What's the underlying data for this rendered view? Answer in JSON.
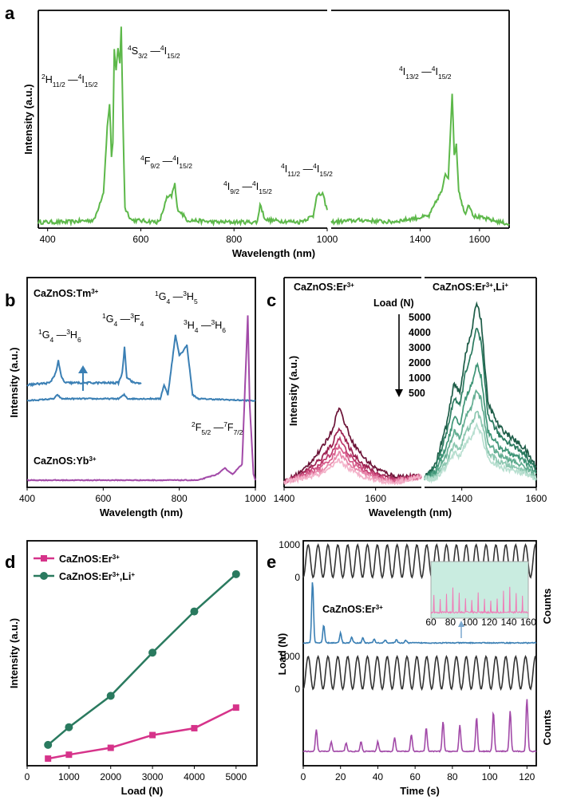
{
  "colors": {
    "green": "#5db84a",
    "blue": "#3a7fb4",
    "purple": "#a24aa8",
    "magenta": "#d6338a",
    "teal": "#2a7a5f",
    "wine": "#7a1840",
    "axis": "#000000",
    "inset_bg": "#c9ece0",
    "inset_line": "#f07ab6"
  },
  "panels": {
    "a": {
      "label": "a",
      "xlabel": "Wavelength (nm)",
      "ylabel": "Intensity (a.u.)",
      "peaks": [
        {
          "base": "H",
          "pre": "2",
          "sub": "11/2",
          "end": "4",
          "to": "I",
          "tosub": "15/2"
        },
        {
          "base": "S",
          "pre": "4",
          "sub": "3/2",
          "end": "4",
          "to": "I",
          "tosub": "15/2"
        },
        {
          "base": "F",
          "pre": "4",
          "sub": "9/2",
          "end": "4",
          "to": "I",
          "tosub": "15/2"
        },
        {
          "base": "I",
          "pre": "4",
          "sub": "9/2",
          "end": "4",
          "to": "I",
          "tosub": "15/2"
        },
        {
          "base": "I",
          "pre": "4",
          "sub": "11/2",
          "end": "4",
          "to": "I",
          "tosub": "15/2"
        },
        {
          "base": "I",
          "pre": "4",
          "sub": "13/2",
          "end": "4",
          "to": "I",
          "tosub": "15/2"
        }
      ]
    },
    "b": {
      "label": "b",
      "xlabel": "Wavelength (nm)",
      "ylabel": "Intensity (a.u.)",
      "tm_label": "CaZnOS:Tm",
      "tm_sup": "3+",
      "yb_label": "CaZnOS:Yb",
      "yb_sup": "3+",
      "peaks": [
        {
          "a": "1",
          "b": "G",
          "bs": "4",
          "c": "3",
          "d": "H",
          "ds": "6"
        },
        {
          "a": "1",
          "b": "G",
          "bs": "4",
          "c": "3",
          "d": "F",
          "ds": "4"
        },
        {
          "a": "1",
          "b": "G",
          "bs": "4",
          "c": "3",
          "d": "H",
          "ds": "5"
        },
        {
          "a": "3",
          "b": "H",
          "bs": "4",
          "c": "3",
          "d": "H",
          "ds": "6"
        },
        {
          "a": "2",
          "b": "F",
          "bs": "5/2",
          "c": "7",
          "d": "F",
          "ds": "7/2"
        }
      ]
    },
    "c": {
      "label": "c",
      "xlabel": "Wavelength (nm)",
      "ylabel": "Intensity (a.u.)",
      "left_title": "CaZnOS:Er",
      "left_sup": "3+",
      "right_title": "CaZnOS:Er",
      "right_sup": "3+",
      "right_extra": ",Li",
      "right_extra_sup": "+",
      "load_title": "Load (N)",
      "loads": [
        "5000",
        "4000",
        "3000",
        "2000",
        "1000",
        "500"
      ]
    },
    "d": {
      "label": "d",
      "xlabel": "Load (N)",
      "ylabel": "Intensity (a.u.)",
      "legend": [
        {
          "text": "CaZnOS:Er",
          "sup": "3+",
          "extra": "",
          "extra_sup": ""
        },
        {
          "text": "CaZnOS:Er",
          "sup": "3+",
          "extra": ",Li",
          "extra_sup": "+"
        }
      ]
    },
    "e": {
      "label": "e",
      "xlabel": "Time (s)",
      "ylabel": "Load (N)",
      "counts_label": "Counts",
      "series_label": "CaZnOS:Er",
      "series_sup": "3+"
    }
  },
  "chart_data": [
    {
      "type": "line",
      "panel": "a",
      "xlabel": "Wavelength (nm)",
      "ylabel": "Intensity (a.u.)",
      "broken_axis": true,
      "xlim_left": [
        380,
        1000
      ],
      "xlim_right": [
        1100,
        1700
      ],
      "xticks_left": [
        400,
        600,
        800,
        1000
      ],
      "xticks_right": [
        1400,
        1600
      ],
      "series": [
        {
          "color": "#5db84a",
          "left_points": [
            [
              380,
              0.03
            ],
            [
              440,
              0.03
            ],
            [
              500,
              0.04
            ],
            [
              520,
              0.18
            ],
            [
              528,
              0.5
            ],
            [
              533,
              0.62
            ],
            [
              537,
              0.36
            ],
            [
              540,
              0.42
            ],
            [
              543,
              0.88
            ],
            [
              547,
              0.78
            ],
            [
              551,
              0.9
            ],
            [
              555,
              0.82
            ],
            [
              558,
              1.0
            ],
            [
              562,
              0.5
            ],
            [
              566,
              0.1
            ],
            [
              580,
              0.04
            ],
            [
              640,
              0.03
            ],
            [
              656,
              0.15
            ],
            [
              666,
              0.16
            ],
            [
              673,
              0.22
            ],
            [
              678,
              0.1
            ],
            [
              700,
              0.04
            ],
            [
              760,
              0.03
            ],
            [
              850,
              0.03
            ],
            [
              856,
              0.12
            ],
            [
              864,
              0.06
            ],
            [
              870,
              0.04
            ],
            [
              940,
              0.03
            ],
            [
              970,
              0.06
            ],
            [
              977,
              0.16
            ],
            [
              990,
              0.17
            ],
            [
              1000,
              0.09
            ]
          ],
          "right_points": [
            [
              1100,
              0.03
            ],
            [
              1200,
              0.04
            ],
            [
              1300,
              0.03
            ],
            [
              1430,
              0.06
            ],
            [
              1460,
              0.15
            ],
            [
              1475,
              0.19
            ],
            [
              1485,
              0.27
            ],
            [
              1495,
              0.25
            ],
            [
              1500,
              0.42
            ],
            [
              1508,
              0.67
            ],
            [
              1515,
              0.36
            ],
            [
              1522,
              0.42
            ],
            [
              1530,
              0.19
            ],
            [
              1550,
              0.07
            ],
            [
              1565,
              0.12
            ],
            [
              1580,
              0.06
            ],
            [
              1640,
              0.04
            ],
            [
              1700,
              0.02
            ]
          ]
        }
      ]
    },
    {
      "type": "line",
      "panel": "b",
      "xlabel": "Wavelength (nm)",
      "ylabel": "Intensity (a.u.)",
      "xlim": [
        400,
        1000
      ],
      "xticks": [
        400,
        600,
        800,
        1000
      ],
      "series": [
        {
          "name": "CaZnOS:Tm3+",
          "color": "#3a7fb4",
          "points": [
            [
              400,
              0.42
            ],
            [
              470,
              0.43
            ],
            [
              480,
              0.45
            ],
            [
              490,
              0.43
            ],
            [
              640,
              0.43
            ],
            [
              655,
              0.45
            ],
            [
              665,
              0.43
            ],
            [
              750,
              0.43
            ],
            [
              760,
              0.5
            ],
            [
              770,
              0.45
            ],
            [
              790,
              0.75
            ],
            [
              800,
              0.65
            ],
            [
              810,
              0.67
            ],
            [
              820,
              0.7
            ],
            [
              835,
              0.45
            ],
            [
              850,
              0.43
            ],
            [
              1000,
              0.42
            ]
          ]
        },
        {
          "name": "CaZnOS:Yb3+",
          "color": "#a24aa8",
          "points": [
            [
              400,
              0.02
            ],
            [
              850,
              0.02
            ],
            [
              900,
              0.05
            ],
            [
              920,
              0.08
            ],
            [
              940,
              0.05
            ],
            [
              965,
              0.1
            ],
            [
              975,
              0.6
            ],
            [
              980,
              0.85
            ],
            [
              985,
              0.4
            ],
            [
              995,
              0.05
            ],
            [
              1000,
              0.02
            ]
          ]
        }
      ]
    },
    {
      "type": "line",
      "panel": "c",
      "xlabel": "Wavelength (nm)",
      "ylabel": "Intensity (a.u.)",
      "xlim_left": [
        1400,
        1700
      ],
      "xlim_right": [
        1300,
        1600
      ],
      "xticks_left": [
        1400,
        1600
      ],
      "xticks_right": [
        1400,
        1600
      ],
      "loads": [
        5000,
        4000,
        3000,
        2000,
        1000,
        500
      ],
      "peak_left": [
        0.43,
        0.32,
        0.26,
        0.22,
        0.18,
        0.14
      ],
      "peak_right": [
        1.0,
        0.86,
        0.66,
        0.52,
        0.4,
        0.32
      ]
    },
    {
      "type": "line",
      "panel": "d",
      "xlabel": "Load (N)",
      "ylabel": "Intensity (a.u.)",
      "x": [
        500,
        1000,
        2000,
        3000,
        4000,
        5000
      ],
      "xlim": [
        0,
        5500
      ],
      "ylim": [
        0,
        1
      ],
      "xticks": [
        0,
        1000,
        2000,
        3000,
        4000,
        5000
      ],
      "series": [
        {
          "name": "CaZnOS:Er3+",
          "color": "#d6338a",
          "values": [
            0.02,
            0.04,
            0.075,
            0.14,
            0.175,
            0.28
          ]
        },
        {
          "name": "CaZnOS:Er3+,Li+",
          "color": "#2a7a5f",
          "values": [
            0.09,
            0.18,
            0.34,
            0.56,
            0.77,
            0.96
          ]
        }
      ]
    },
    {
      "type": "line",
      "panel": "e",
      "xlabel": "Time (s)",
      "ylabel": "Load (N)",
      "xlim": [
        0,
        125
      ],
      "xticks": [
        0,
        20,
        40,
        60,
        80,
        100,
        120
      ],
      "load_ticks": [
        0,
        1000
      ],
      "period_s": 5.3,
      "series": [
        {
          "name": "CaZnOS:Er3+",
          "color": "#3a7fb4",
          "peak_times": [
            5,
            11,
            20,
            26,
            32,
            38,
            44,
            50,
            55
          ],
          "peak_values": [
            1.0,
            0.28,
            0.16,
            0.1,
            0.08,
            0.06,
            0.05,
            0.05,
            0.04
          ]
        },
        {
          "name": "Counts",
          "color": "#a24aa8",
          "peak_times": [
            7,
            15,
            23,
            31,
            40,
            49,
            58,
            66,
            75,
            84,
            93,
            102,
            111,
            120
          ],
          "peak_values": [
            0.35,
            0.15,
            0.14,
            0.15,
            0.16,
            0.22,
            0.27,
            0.38,
            0.48,
            0.42,
            0.55,
            0.63,
            0.65,
            0.85
          ]
        },
        {
          "name": "inset",
          "color": "#f07ab6",
          "xlim": [
            60,
            160
          ],
          "xticks": [
            60,
            80,
            100,
            120,
            140,
            160
          ]
        }
      ]
    }
  ]
}
